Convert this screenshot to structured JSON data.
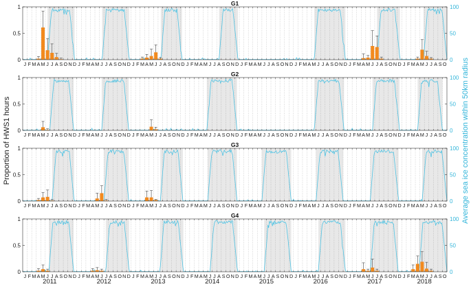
{
  "chart_data": {
    "type": "bar",
    "figure": {
      "ylabel_left": "Proportion of HWS1 hours",
      "ylabel_right": "Average sea ice concentration within 50km radius",
      "month_letters": [
        "J",
        "F",
        "M",
        "A",
        "M",
        "J",
        "J",
        "A",
        "S",
        "O",
        "N",
        "D"
      ],
      "years": [
        "2011",
        "2012",
        "2013",
        "2014",
        "2015",
        "2016",
        "2017",
        "2018"
      ],
      "last_year_months_shown": 10,
      "left_ylim": [
        0,
        1
      ],
      "left_ticks": [
        "0",
        "0.5",
        "1"
      ],
      "right_ylim": [
        0,
        100
      ],
      "right_ticks": [
        "0",
        "50",
        "100"
      ],
      "colors": {
        "bar": "#F28A1E",
        "ice_line": "#4FC3E3",
        "shade": "#E8E8E8",
        "dotted": "#555555",
        "right_axis": "#33B5DA"
      }
    },
    "panels": [
      {
        "title": "G1",
        "bars": [
          {
            "m": 3,
            "v": 0.02,
            "e": 0.06
          },
          {
            "m": 4,
            "v": 0.61,
            "e": 0.92
          },
          {
            "m": 5,
            "v": 0.18,
            "e": 0.4
          },
          {
            "m": 6,
            "v": 0.13,
            "e": 0.3
          },
          {
            "m": 7,
            "v": 0.05,
            "e": 0.12
          },
          {
            "m": 8,
            "v": 0.01,
            "e": 0.03
          },
          {
            "m": 26,
            "v": 0.02,
            "e": 0.05
          },
          {
            "m": 27,
            "v": 0.04,
            "e": 0.1
          },
          {
            "m": 28,
            "v": 0.07,
            "e": 0.2
          },
          {
            "m": 29,
            "v": 0.14,
            "e": 0.28
          },
          {
            "m": 30,
            "v": 0.02,
            "e": 0.04
          },
          {
            "m": 75,
            "v": 0.03,
            "e": 0.11
          },
          {
            "m": 76,
            "v": 0.04,
            "e": 0.08
          },
          {
            "m": 77,
            "v": 0.26,
            "e": 0.55
          },
          {
            "m": 78,
            "v": 0.24,
            "e": 0.45
          },
          {
            "m": 79,
            "v": 0.02,
            "e": 0.05
          },
          {
            "m": 87,
            "v": 0.02,
            "e": 0.05
          },
          {
            "m": 88,
            "v": 0.19,
            "e": 0.38
          },
          {
            "m": 89,
            "v": 0.07,
            "e": 0.16
          },
          {
            "m": 90,
            "v": 0.02,
            "e": 0.04
          }
        ],
        "ice_periods": [
          [
            5.5,
            11.5
          ],
          [
            17.6,
            23.6
          ],
          [
            30.6,
            35.3
          ],
          [
            43.5,
            47.7
          ],
          [
            64.6,
            71.5
          ],
          [
            78.5,
            83.6
          ],
          [
            88.8,
            94
          ]
        ]
      },
      {
        "title": "G2",
        "bars": [
          {
            "m": 4,
            "v": 0.06,
            "e": 0.17
          },
          {
            "m": 5,
            "v": 0.01,
            "e": 0.03
          },
          {
            "m": 28,
            "v": 0.07,
            "e": 0.2
          },
          {
            "m": 29,
            "v": 0.02,
            "e": 0.06
          }
        ],
        "ice_periods": [
          [
            6,
            11.3
          ],
          [
            17.5,
            23.5
          ],
          [
            40.8,
            47.5
          ],
          [
            64.6,
            71.2
          ],
          [
            77.5,
            83.5
          ],
          [
            87.5,
            93
          ]
        ]
      },
      {
        "title": "G3",
        "bars": [
          {
            "m": 3,
            "v": 0.02,
            "e": 0.05
          },
          {
            "m": 4,
            "v": 0.07,
            "e": 0.16
          },
          {
            "m": 5,
            "v": 0.08,
            "e": 0.21
          },
          {
            "m": 6,
            "v": 0.01,
            "e": 0.03
          },
          {
            "m": 16,
            "v": 0.05,
            "e": 0.15
          },
          {
            "m": 17,
            "v": 0.15,
            "e": 0.29
          },
          {
            "m": 18,
            "v": 0.01,
            "e": 0.03
          },
          {
            "m": 27,
            "v": 0.07,
            "e": 0.19
          },
          {
            "m": 28,
            "v": 0.07,
            "e": 0.2
          },
          {
            "m": 29,
            "v": 0.02,
            "e": 0.03
          }
        ],
        "ice_periods": [
          [
            6.5,
            11.4
          ],
          [
            18,
            23.5
          ],
          [
            30.5,
            35.5
          ],
          [
            41,
            47.5
          ],
          [
            53,
            59.5
          ],
          [
            65,
            71
          ],
          [
            77,
            83.3
          ],
          [
            88.5,
            94
          ]
        ]
      },
      {
        "title": "G4",
        "bars": [
          {
            "m": 3,
            "v": 0.02,
            "e": 0.06
          },
          {
            "m": 4,
            "v": 0.05,
            "e": 0.13
          },
          {
            "m": 5,
            "v": 0.02,
            "e": 0.05
          },
          {
            "m": 15,
            "v": 0.02,
            "e": 0.06
          },
          {
            "m": 16,
            "v": 0.03,
            "e": 0.08
          },
          {
            "m": 17,
            "v": 0.02,
            "e": 0.05
          },
          {
            "m": 75,
            "v": 0.05,
            "e": 0.17
          },
          {
            "m": 76,
            "v": 0.02,
            "e": 0.05
          },
          {
            "m": 77,
            "v": 0.08,
            "e": 0.24
          },
          {
            "m": 78,
            "v": 0.02,
            "e": 0.05
          },
          {
            "m": 86,
            "v": 0.05,
            "e": 0.13
          },
          {
            "m": 87,
            "v": 0.15,
            "e": 0.3
          },
          {
            "m": 88,
            "v": 0.19,
            "e": 0.38
          },
          {
            "m": 89,
            "v": 0.06,
            "e": 0.18
          },
          {
            "m": 90,
            "v": 0.02,
            "e": 0.05
          }
        ],
        "ice_periods": [
          [
            5.8,
            11.3
          ],
          [
            18.4,
            23.6
          ],
          [
            30.4,
            35.6
          ],
          [
            41.5,
            47.6
          ],
          [
            53.5,
            59.5
          ],
          [
            65.5,
            71.5
          ],
          [
            77,
            83.2
          ],
          [
            87.8,
            94
          ]
        ]
      }
    ]
  }
}
